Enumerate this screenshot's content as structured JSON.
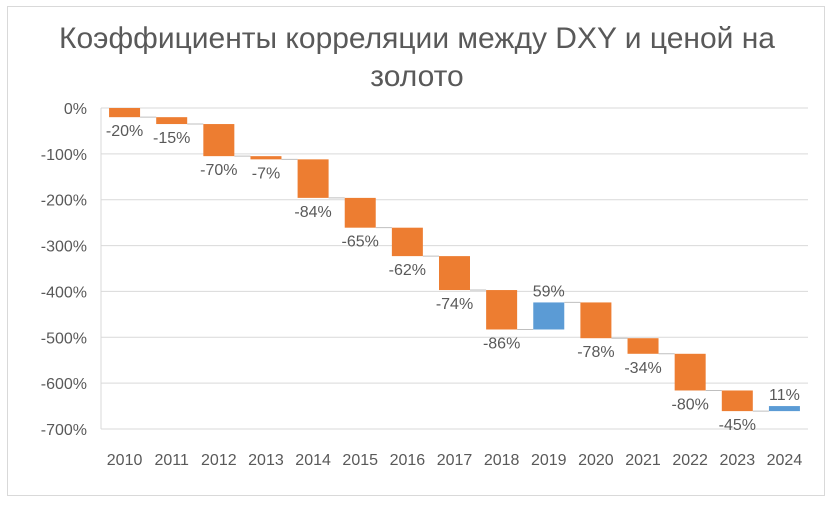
{
  "chart_data": {
    "type": "waterfall",
    "title": "Коэффициенты корреляции между DXY и ценой на золото",
    "title_lines": [
      "Коэффициенты корреляции между DXY и ценой на",
      "золото"
    ],
    "categories": [
      "2010",
      "2011",
      "2012",
      "2013",
      "2014",
      "2015",
      "2016",
      "2017",
      "2018",
      "2019",
      "2020",
      "2021",
      "2022",
      "2023",
      "2024"
    ],
    "values": [
      -20,
      -15,
      -70,
      -7,
      -84,
      -65,
      -62,
      -74,
      -86,
      59,
      -78,
      -34,
      -80,
      -45,
      11
    ],
    "value_labels": [
      "-20%",
      "-15%",
      "-70%",
      "-7%",
      "-84%",
      "-65%",
      "-62%",
      "-74%",
      "-86%",
      "59%",
      "-78%",
      "-34%",
      "-80%",
      "-45%",
      "11%"
    ],
    "ylim": [
      -700,
      0
    ],
    "yticks": [
      0,
      -100,
      -200,
      -300,
      -400,
      -500,
      -600,
      -700
    ],
    "ytick_labels": [
      "0%",
      "-100%",
      "-200%",
      "-300%",
      "-400%",
      "-500%",
      "-600%",
      "-700%"
    ],
    "grid": true,
    "legend": "none",
    "colors": {
      "decrease": "#ED7D31",
      "increase": "#5B9BD5",
      "grid": "#D9D9D9",
      "text": "#595959"
    }
  }
}
